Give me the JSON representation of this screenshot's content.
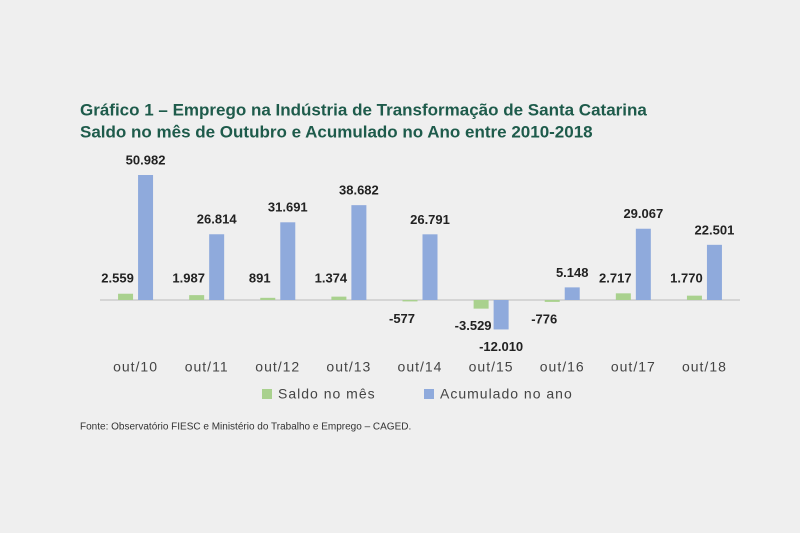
{
  "chart_data": {
    "type": "bar",
    "title": "Gráfico 1 – Emprego na Indústria de Transformação de Santa Catarina",
    "subtitle": "Saldo no mês de Outubro e Acumulado no Ano entre 2010-2018",
    "categories": [
      "out/10",
      "out/11",
      "out/12",
      "out/13",
      "out/14",
      "out/15",
      "out/16",
      "out/17",
      "out/18"
    ],
    "series": [
      {
        "name": "Saldo no mês",
        "color": "#a9d18e",
        "values": [
          2559,
          1987,
          891,
          1374,
          -577,
          -3529,
          -776,
          2717,
          1770
        ],
        "value_labels": [
          "2.559",
          "1.987",
          "891",
          "1.374",
          "-577",
          "-3.529",
          "-776",
          "2.717",
          "1.770"
        ]
      },
      {
        "name": "Acumulado no ano",
        "color": "#8faadc",
        "values": [
          50982,
          26814,
          31691,
          38682,
          26791,
          -12010,
          5148,
          29067,
          22501
        ],
        "value_labels": [
          "50.982",
          "26.814",
          "31.691",
          "38.682",
          "26.791",
          "-12.010",
          "5.148",
          "29.067",
          "22.501"
        ]
      }
    ],
    "legend": "bottom",
    "source": "Fonte: Observatório FIESC e Ministério do Trabalho e Emprego – CAGED."
  }
}
